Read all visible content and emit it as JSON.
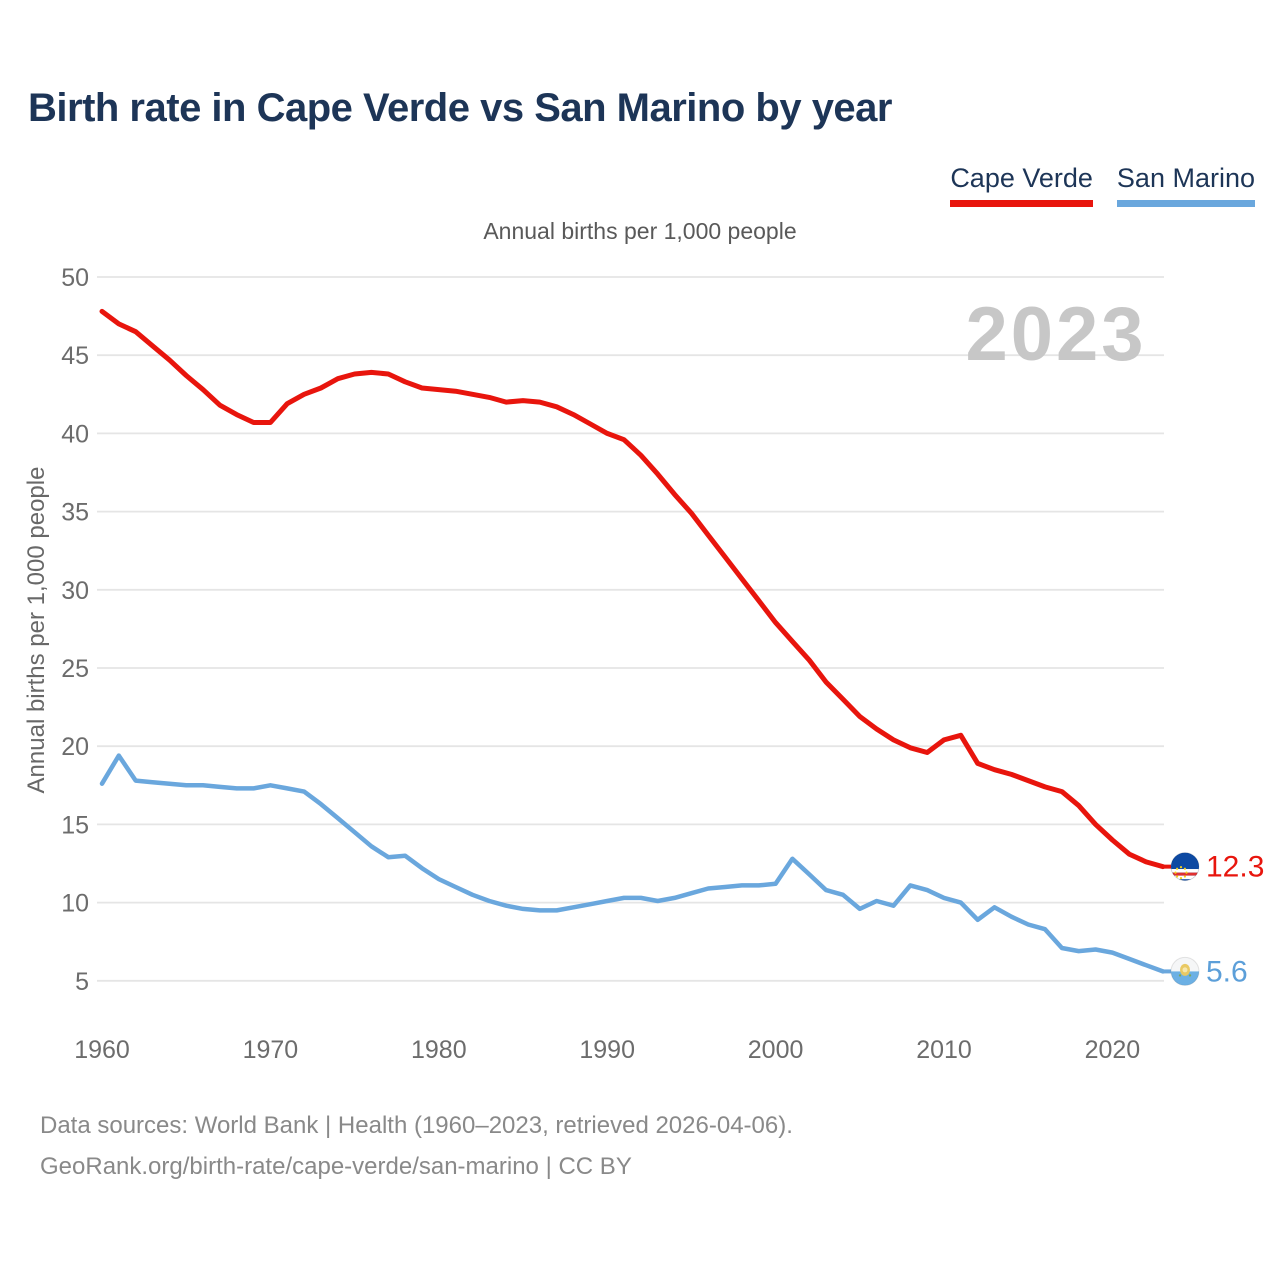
{
  "header": {
    "title": "Birth rate in Cape Verde vs San Marino by year"
  },
  "legend": {
    "items": [
      {
        "label": "Cape Verde",
        "color": "#e8150d"
      },
      {
        "label": "San Marino",
        "color": "#6aa7dd"
      }
    ]
  },
  "chart_data": {
    "type": "line",
    "title": "Annual births per 1,000 people",
    "ylabel": "Annual births per 1,000 people",
    "xlabel": "",
    "watermark": "2023",
    "grid": true,
    "legend_position": "top-right",
    "xticks": [
      1960,
      1970,
      1980,
      1990,
      2000,
      2010,
      2020
    ],
    "yticks": [
      50,
      45,
      40,
      35,
      30,
      25,
      20,
      15,
      10,
      5
    ],
    "ylim": [
      5,
      50
    ],
    "xlim": [
      1960,
      2023
    ],
    "x": [
      1960,
      1961,
      1962,
      1963,
      1964,
      1965,
      1966,
      1967,
      1968,
      1969,
      1970,
      1971,
      1972,
      1973,
      1974,
      1975,
      1976,
      1977,
      1978,
      1979,
      1980,
      1981,
      1982,
      1983,
      1984,
      1985,
      1986,
      1987,
      1988,
      1989,
      1990,
      1991,
      1992,
      1993,
      1994,
      1995,
      1996,
      1997,
      1998,
      1999,
      2000,
      2001,
      2002,
      2003,
      2004,
      2005,
      2006,
      2007,
      2008,
      2009,
      2010,
      2011,
      2012,
      2013,
      2014,
      2015,
      2016,
      2017,
      2018,
      2019,
      2020,
      2021,
      2022,
      2023
    ],
    "series": [
      {
        "name": "Cape Verde",
        "color": "#e8150d",
        "end_label": "12.3",
        "flag_icon": "cape-verde-flag-icon",
        "values": [
          47.8,
          47.0,
          46.5,
          45.6,
          44.7,
          43.7,
          42.8,
          41.8,
          41.2,
          40.7,
          40.7,
          41.9,
          42.5,
          42.9,
          43.5,
          43.8,
          43.9,
          43.8,
          43.3,
          42.9,
          42.8,
          42.7,
          42.5,
          42.3,
          42.0,
          42.1,
          42.0,
          41.7,
          41.2,
          40.6,
          40.0,
          39.6,
          38.6,
          37.4,
          36.1,
          34.9,
          33.5,
          32.1,
          30.7,
          29.3,
          27.9,
          26.7,
          25.5,
          24.1,
          23.0,
          21.9,
          21.1,
          20.4,
          19.9,
          19.6,
          20.4,
          20.7,
          18.9,
          18.5,
          18.2,
          17.8,
          17.4,
          17.1,
          16.2,
          15.0,
          14.0,
          13.1,
          12.6,
          12.3
        ]
      },
      {
        "name": "San Marino",
        "color": "#6aa7dd",
        "end_label": "5.6",
        "flag_icon": "san-marino-flag-icon",
        "values": [
          17.6,
          19.4,
          17.8,
          17.7,
          17.6,
          17.5,
          17.5,
          17.4,
          17.3,
          17.3,
          17.5,
          17.3,
          17.1,
          16.3,
          15.4,
          14.5,
          13.6,
          12.9,
          13.0,
          12.2,
          11.5,
          11.0,
          10.5,
          10.1,
          9.8,
          9.6,
          9.5,
          9.5,
          9.7,
          9.9,
          10.1,
          10.3,
          10.3,
          10.1,
          10.3,
          10.6,
          10.9,
          11.0,
          11.1,
          11.1,
          11.2,
          12.8,
          11.8,
          10.8,
          10.5,
          9.6,
          10.1,
          9.8,
          11.1,
          10.8,
          10.3,
          10.0,
          8.9,
          9.7,
          9.1,
          8.6,
          8.3,
          7.1,
          6.9,
          7.0,
          6.8,
          6.4,
          6.0,
          5.6
        ]
      }
    ],
    "end_label_colors": {
      "cape_verde": "#e8150d",
      "san_marino": "#5c9fd9"
    },
    "colors": {
      "gridline": "#e5e5e5",
      "tick_label": "#6c6c6c",
      "watermark": "#c7c7c7",
      "axis_title": "#686868"
    }
  },
  "footer": {
    "line1": "Data sources: World Bank | Health (1960–2023, retrieved 2026-04-06).",
    "line2": "GeoRank.org/birth-rate/cape-verde/san-marino | CC BY"
  }
}
